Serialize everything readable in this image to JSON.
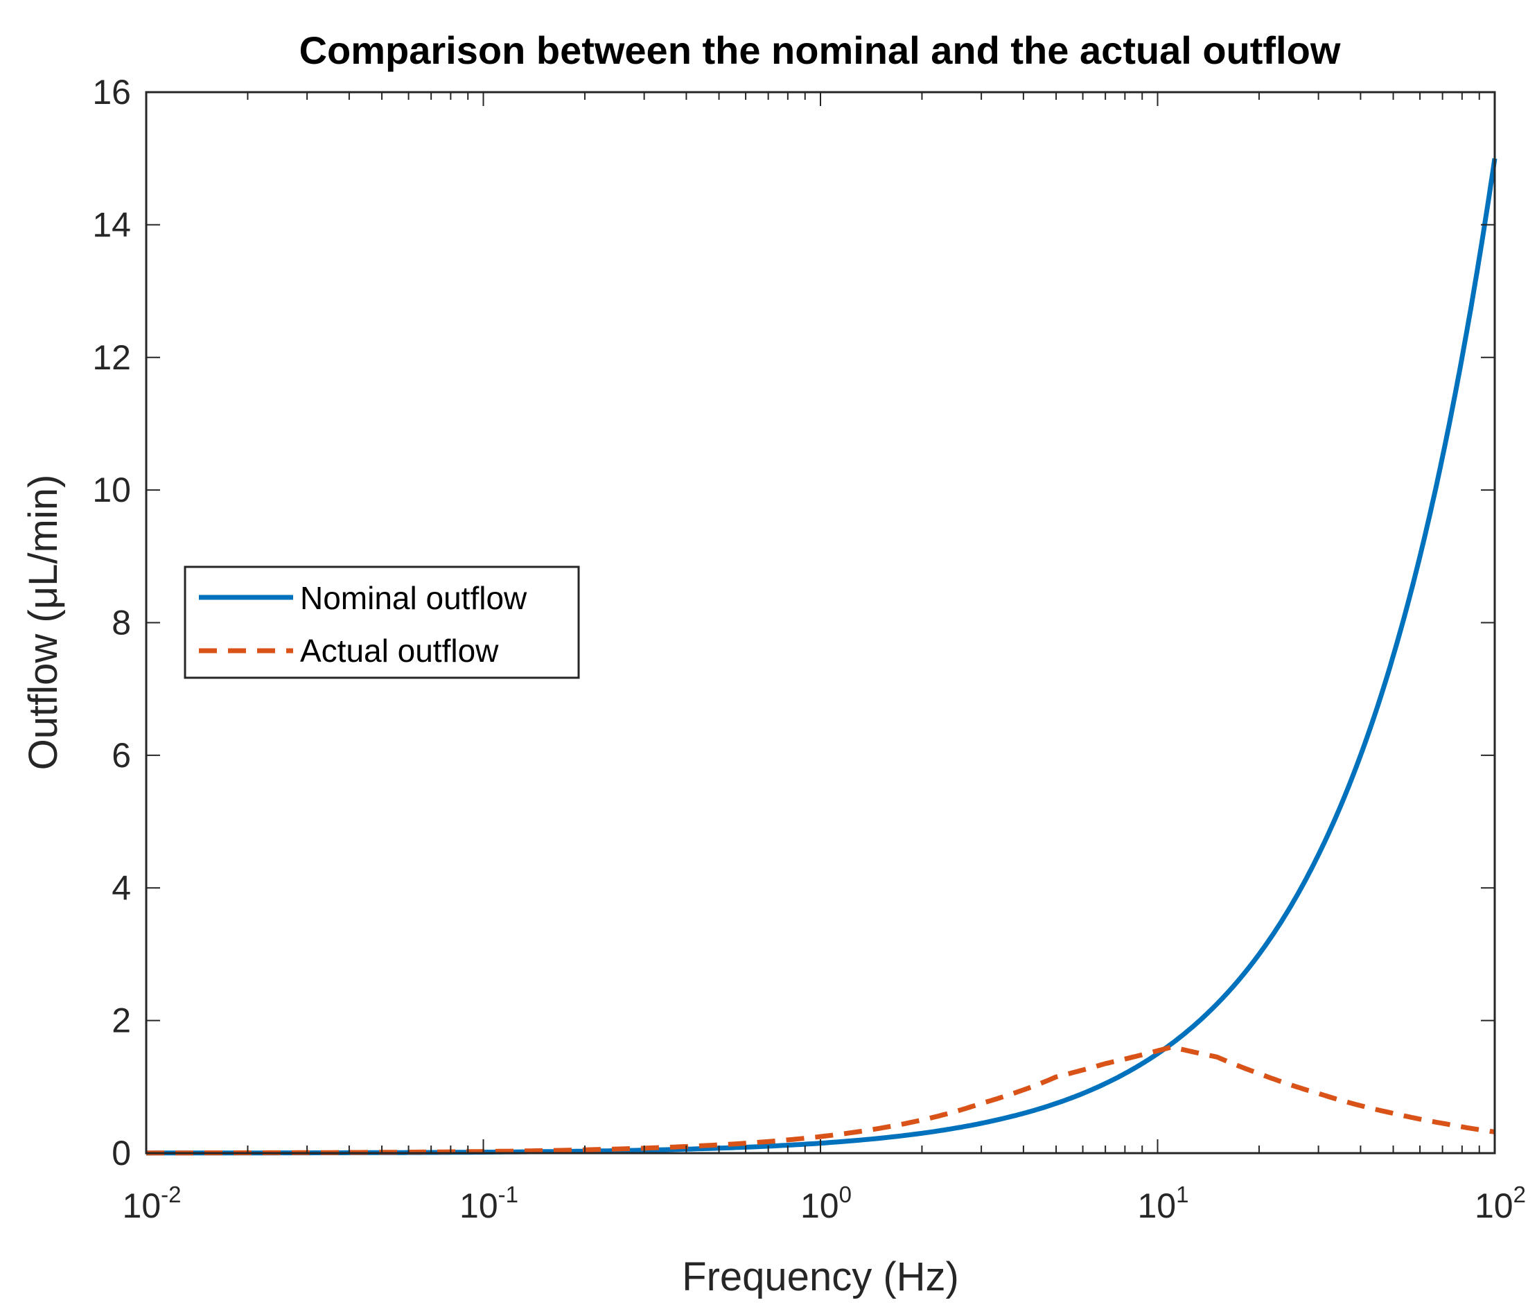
{
  "chart_data": {
    "type": "line",
    "title": "Comparison between the nominal and the actual outflow",
    "xlabel": "Frequency (Hz)",
    "ylabel": "Outflow (μL/min)",
    "xscale": "log",
    "xlim": [
      0.01,
      100
    ],
    "ylim": [
      0,
      16
    ],
    "grid": false,
    "legend_position": "center-left",
    "x_ticks": [
      {
        "base": "10",
        "exp": "-2",
        "value": 0.01
      },
      {
        "base": "10",
        "exp": "-1",
        "value": 0.1
      },
      {
        "base": "10",
        "exp": "0",
        "value": 1
      },
      {
        "base": "10",
        "exp": "1",
        "value": 10
      },
      {
        "base": "10",
        "exp": "2",
        "value": 100
      }
    ],
    "y_ticks": [
      {
        "label": "0",
        "value": 0
      },
      {
        "label": "2",
        "value": 2
      },
      {
        "label": "4",
        "value": 4
      },
      {
        "label": "6",
        "value": 6
      },
      {
        "label": "8",
        "value": 8
      },
      {
        "label": "10",
        "value": 10
      },
      {
        "label": "12",
        "value": 12
      },
      {
        "label": "14",
        "value": 14
      },
      {
        "label": "16",
        "value": 16
      }
    ],
    "series": [
      {
        "name": "Nominal outflow",
        "color": "#0072BD",
        "style": "solid",
        "x": [
          0.01,
          0.02,
          0.05,
          0.1,
          0.2,
          0.5,
          1,
          2,
          3,
          5,
          7,
          10,
          15,
          20,
          30,
          50,
          70,
          100
        ],
        "y": [
          0.0015,
          0.003,
          0.0075,
          0.015,
          0.03,
          0.075,
          0.15,
          0.3,
          0.45,
          0.75,
          1.05,
          1.5,
          2.25,
          3.0,
          4.5,
          7.5,
          10.5,
          15.0
        ]
      },
      {
        "name": "Actual outflow",
        "color": "#D95319",
        "style": "dashed",
        "x": [
          0.01,
          0.02,
          0.05,
          0.1,
          0.2,
          0.5,
          1,
          2,
          3,
          5,
          7,
          11,
          15,
          20,
          30,
          50,
          70,
          100
        ],
        "y": [
          0.0025,
          0.005,
          0.0125,
          0.025,
          0.05,
          0.125,
          0.25,
          0.5,
          0.75,
          1.15,
          1.35,
          1.6,
          1.45,
          1.2,
          0.9,
          0.6,
          0.45,
          0.32
        ]
      }
    ]
  }
}
